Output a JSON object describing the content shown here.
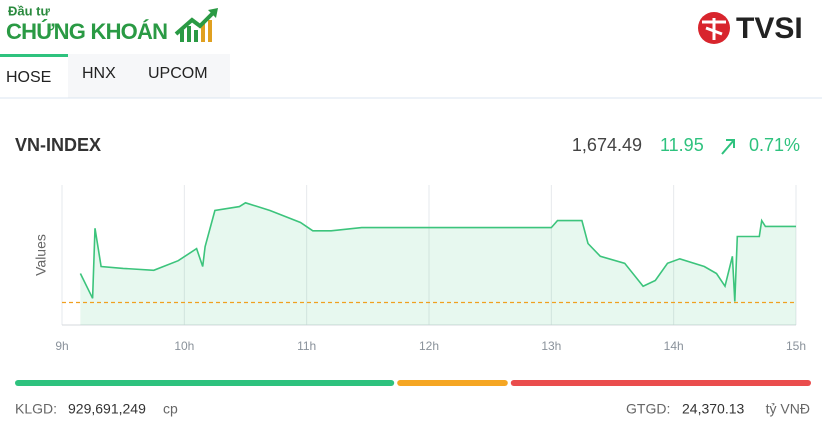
{
  "header": {
    "logo_small": "Đầu tư",
    "logo_main": "CHỨNG KHOÁN",
    "brand": "TVSI"
  },
  "tabs": [
    "HOSE",
    "HNX",
    "UPCOM"
  ],
  "index": {
    "name": "VN-INDEX",
    "value": "1,674.49",
    "change": "11.95",
    "change_percent": "0.71%"
  },
  "chart_data": {
    "type": "line",
    "y_label": "Values",
    "x": [
      9.15,
      9.25,
      9.27,
      9.32,
      9.5,
      9.75,
      9.95,
      10.1,
      10.15,
      10.17,
      10.25,
      10.45,
      10.5,
      10.7,
      10.95,
      11.05,
      11.2,
      11.45,
      12,
      13,
      13.05,
      13.25,
      13.3,
      13.4,
      13.6,
      13.75,
      13.85,
      13.95,
      14.05,
      14.25,
      14.35,
      14.42,
      14.48,
      14.5,
      14.52,
      14.7,
      14.72,
      14.75,
      15
    ],
    "series": [
      {
        "color": "#3cc47c",
        "values": [
          1667.1,
          1663.2,
          1674.2,
          1668.2,
          1667.9,
          1667.6,
          1669.1,
          1671.0,
          1668.2,
          1671.3,
          1677.0,
          1677.6,
          1678.2,
          1677.0,
          1675.1,
          1673.8,
          1673.8,
          1674.3,
          1674.3,
          1674.3,
          1675.4,
          1675.4,
          1671.8,
          1669.8,
          1668.7,
          1665.1,
          1666.0,
          1668.7,
          1669.4,
          1668.2,
          1667.1,
          1665.1,
          1669.8,
          1662.7,
          1672.9,
          1672.9,
          1675.4,
          1674.5,
          1674.49
        ]
      }
    ],
    "reference_line": 1662.54,
    "reference_color": "#f0a020",
    "xlim": [
      9,
      15
    ],
    "xticks": [
      {
        "value": 9,
        "label": "9h"
      },
      {
        "value": 10,
        "label": "10h"
      },
      {
        "value": 11,
        "label": "11h"
      },
      {
        "value": 12,
        "label": "12h"
      },
      {
        "value": 13,
        "label": "13h"
      },
      {
        "value": 14,
        "label": "14h"
      },
      {
        "value": 15,
        "label": "15h"
      }
    ],
    "ylim": [
      1659,
      1681
    ],
    "grid": true
  },
  "breadth": {
    "values": [
      48,
      14,
      38
    ],
    "colors": [
      "#2ec27e",
      "#f5a623",
      "#ea4d4d"
    ]
  },
  "footer": {
    "volume_label": "KLGD:",
    "volume": "929,691,249",
    "volume_unit": "cp",
    "value_label": "GTGD:",
    "value": "24,370.13",
    "value_unit": "tỷ VNĐ"
  }
}
